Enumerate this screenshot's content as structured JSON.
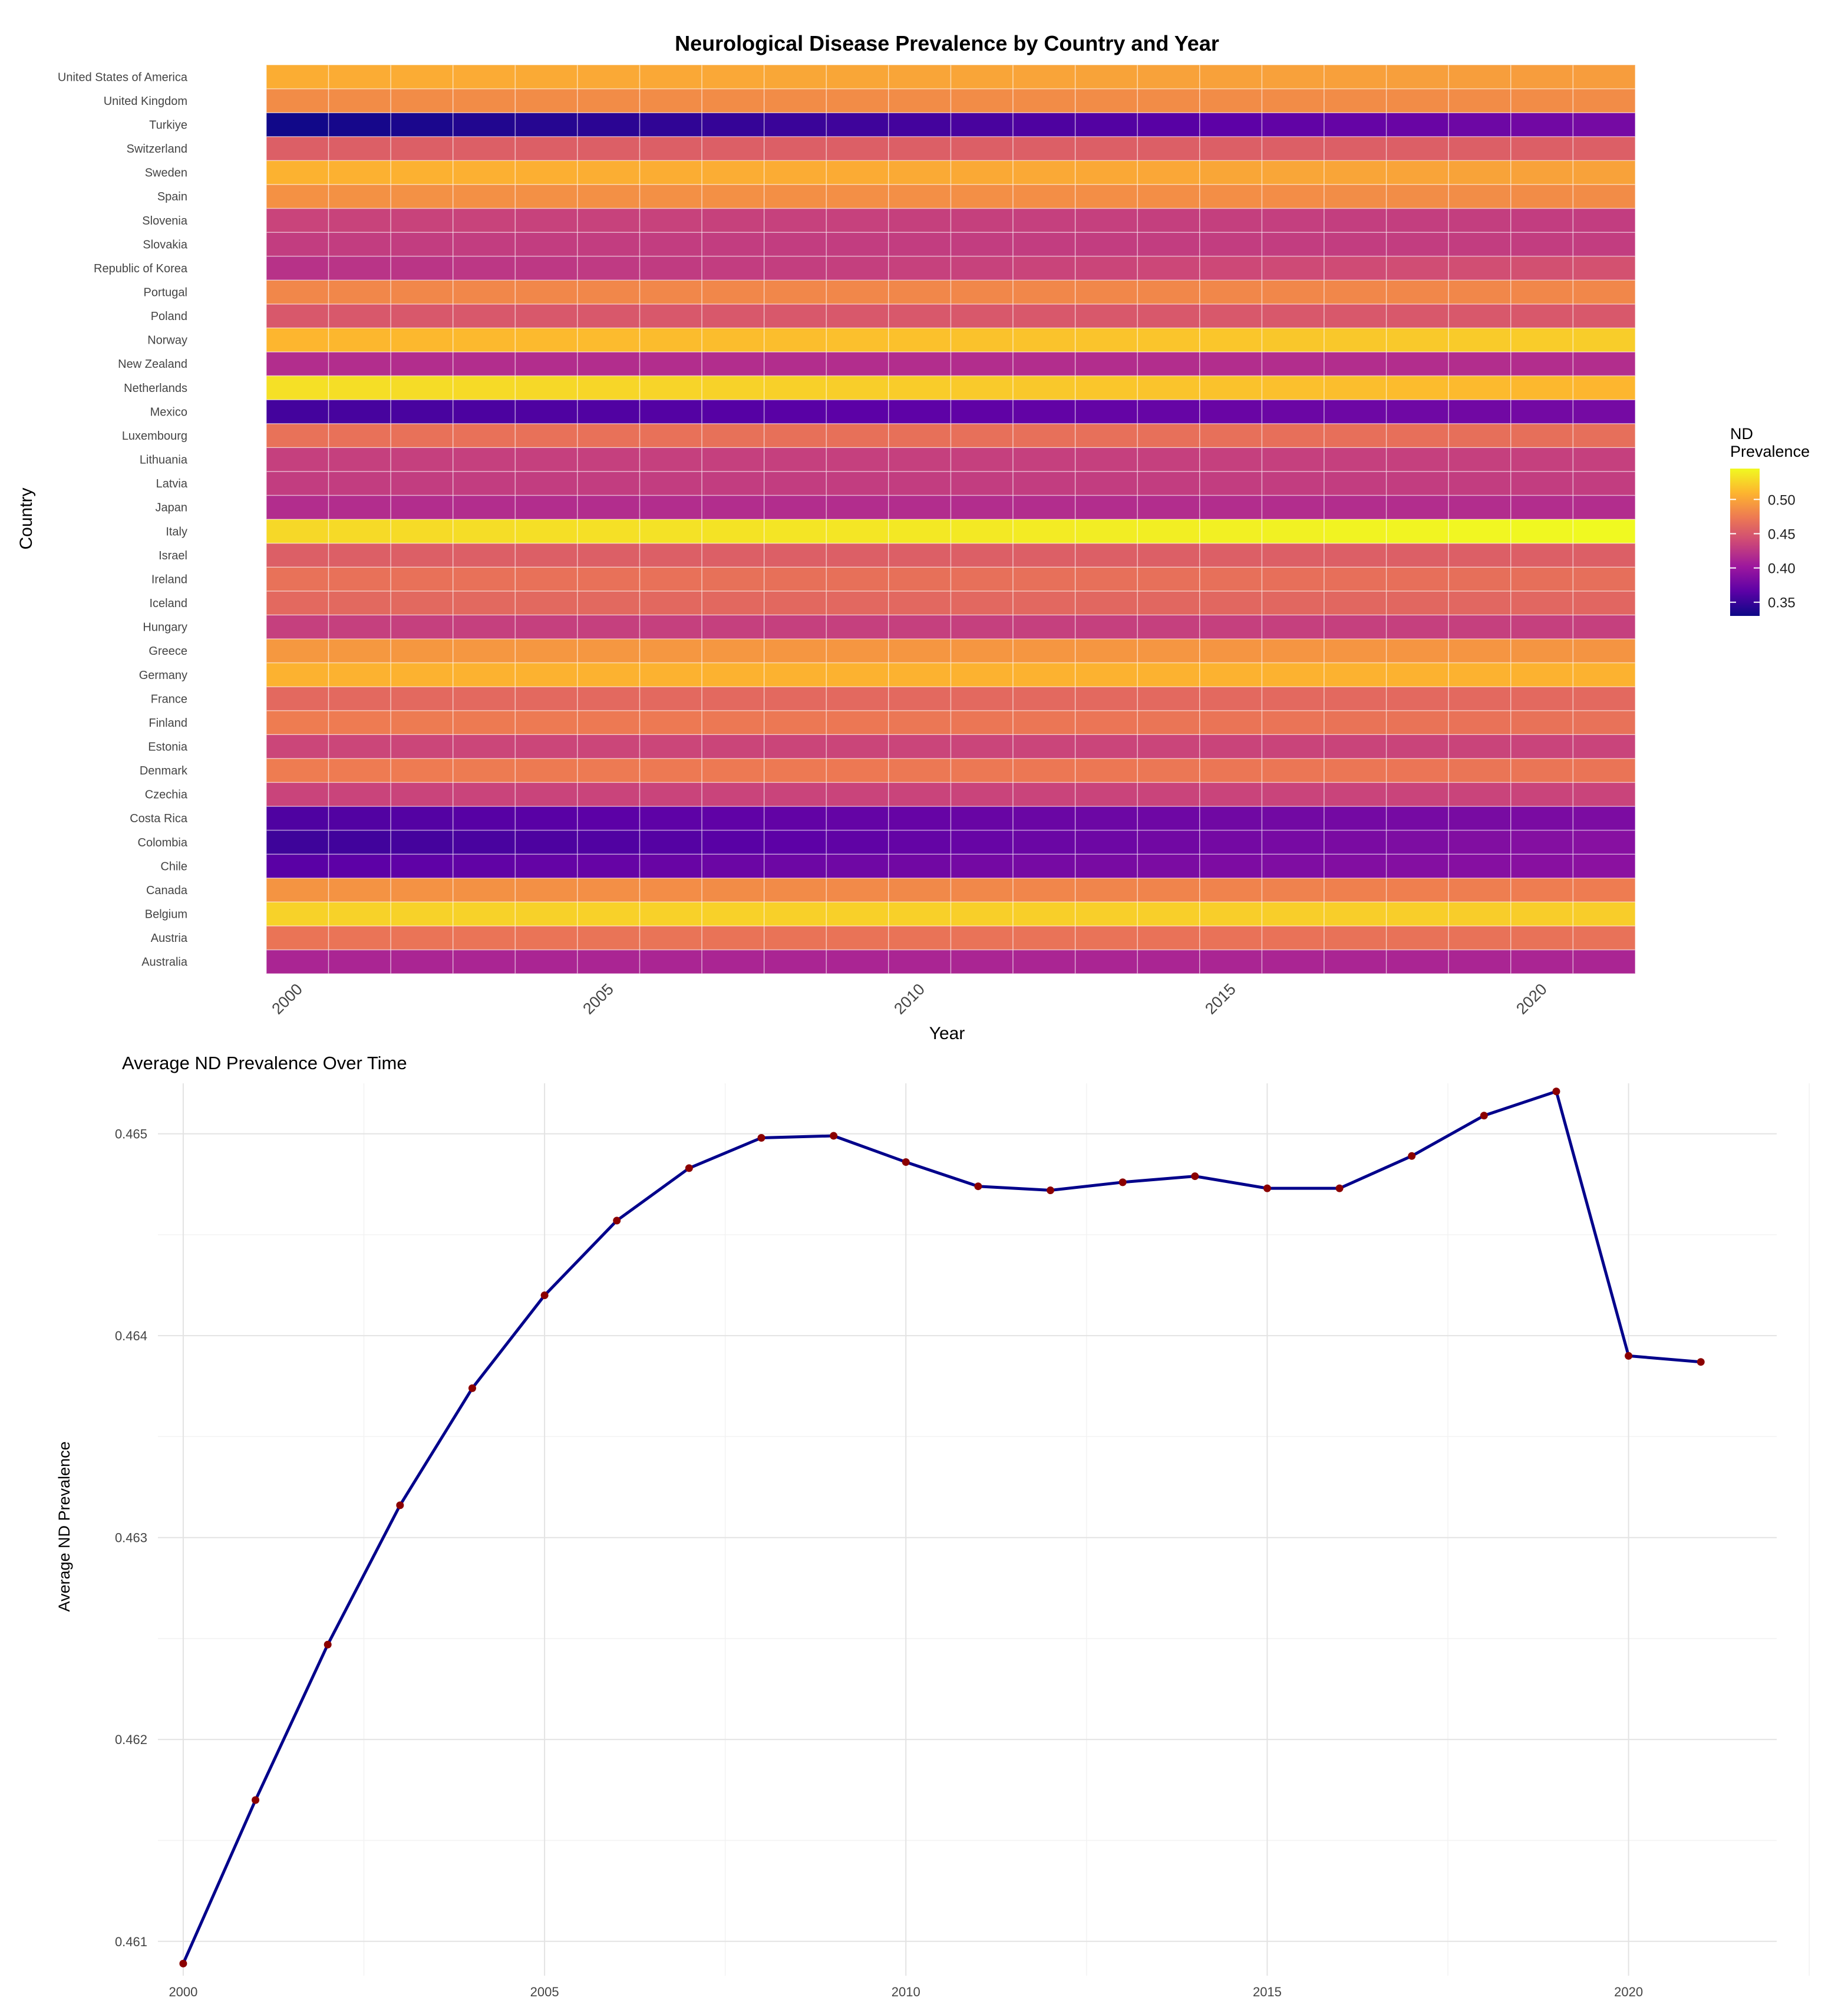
{
  "chart_data": [
    {
      "type": "heatmap",
      "title": "Neurological Disease Prevalence by Country and Year",
      "xlabel": "Year",
      "ylabel": "Country",
      "x": [
        2000,
        2001,
        2002,
        2003,
        2004,
        2005,
        2006,
        2007,
        2008,
        2009,
        2010,
        2011,
        2012,
        2013,
        2014,
        2015,
        2016,
        2017,
        2018,
        2019,
        2020,
        2021
      ],
      "x_ticks": [
        2000,
        2005,
        2010,
        2015,
        2020
      ],
      "x_tick_labels": [
        "2000",
        "2005",
        "2010",
        "2015",
        "2020"
      ],
      "countries": [
        "Australia",
        "Austria",
        "Belgium",
        "Canada",
        "Chile",
        "Colombia",
        "Costa Rica",
        "Czechia",
        "Denmark",
        "Estonia",
        "Finland",
        "France",
        "Germany",
        "Greece",
        "Hungary",
        "Iceland",
        "Ireland",
        "Israel",
        "Italy",
        "Japan",
        "Latvia",
        "Lithuania",
        "Luxembourg",
        "Mexico",
        "Netherlands",
        "New Zealand",
        "Norway",
        "Poland",
        "Portugal",
        "Republic of Korea",
        "Slovakia",
        "Slovenia",
        "Spain",
        "Sweden",
        "Switzerland",
        "Turkiye",
        "United Kingdom",
        "United States of America"
      ],
      "series": [
        {
          "name": "Australia",
          "start": 0.412,
          "end": 0.412
        },
        {
          "name": "Austria",
          "start": 0.47,
          "end": 0.468
        },
        {
          "name": "Belgium",
          "start": 0.525,
          "end": 0.522
        },
        {
          "name": "Canada",
          "start": 0.49,
          "end": 0.475
        },
        {
          "name": "Chile",
          "start": 0.365,
          "end": 0.392
        },
        {
          "name": "Colombia",
          "start": 0.352,
          "end": 0.39
        },
        {
          "name": "Costa Rica",
          "start": 0.36,
          "end": 0.384
        },
        {
          "name": "Czechia",
          "start": 0.435,
          "end": 0.435
        },
        {
          "name": "Denmark",
          "start": 0.475,
          "end": 0.47
        },
        {
          "name": "Estonia",
          "start": 0.437,
          "end": 0.435
        },
        {
          "name": "Finland",
          "start": 0.475,
          "end": 0.468
        },
        {
          "name": "France",
          "start": 0.462,
          "end": 0.462
        },
        {
          "name": "Germany",
          "start": 0.508,
          "end": 0.508
        },
        {
          "name": "Greece",
          "start": 0.492,
          "end": 0.49
        },
        {
          "name": "Hungary",
          "start": 0.432,
          "end": 0.432
        },
        {
          "name": "Iceland",
          "start": 0.462,
          "end": 0.46
        },
        {
          "name": "Ireland",
          "start": 0.468,
          "end": 0.466
        },
        {
          "name": "Israel",
          "start": 0.455,
          "end": 0.455
        },
        {
          "name": "Italy",
          "start": 0.528,
          "end": 0.545
        },
        {
          "name": "Japan",
          "start": 0.418,
          "end": 0.418
        },
        {
          "name": "Latvia",
          "start": 0.43,
          "end": 0.43
        },
        {
          "name": "Lithuania",
          "start": 0.432,
          "end": 0.432
        },
        {
          "name": "Luxembourg",
          "start": 0.468,
          "end": 0.466
        },
        {
          "name": "Mexico",
          "start": 0.355,
          "end": 0.38
        },
        {
          "name": "Netherlands",
          "start": 0.532,
          "end": 0.51
        },
        {
          "name": "New Zealand",
          "start": 0.418,
          "end": 0.418
        },
        {
          "name": "Norway",
          "start": 0.51,
          "end": 0.522
        },
        {
          "name": "Poland",
          "start": 0.45,
          "end": 0.45
        },
        {
          "name": "Portugal",
          "start": 0.482,
          "end": 0.482
        },
        {
          "name": "Republic of Korea",
          "start": 0.422,
          "end": 0.445
        },
        {
          "name": "Slovakia",
          "start": 0.43,
          "end": 0.43
        },
        {
          "name": "Slovenia",
          "start": 0.435,
          "end": 0.43
        },
        {
          "name": "Spain",
          "start": 0.488,
          "end": 0.485
        },
        {
          "name": "Sweden",
          "start": 0.508,
          "end": 0.498
        },
        {
          "name": "Switzerland",
          "start": 0.455,
          "end": 0.455
        },
        {
          "name": "Turkiye",
          "start": 0.332,
          "end": 0.38
        },
        {
          "name": "United Kingdom",
          "start": 0.485,
          "end": 0.485
        },
        {
          "name": "United States of America",
          "start": 0.505,
          "end": 0.495
        }
      ],
      "colorbar": {
        "title_line1": "ND",
        "title_line2": "Prevalence",
        "range": [
          0.33,
          0.545
        ],
        "ticks": [
          0.35,
          0.4,
          0.45,
          0.5
        ],
        "tick_labels": [
          "0.35",
          "0.40",
          "0.45",
          "0.50"
        ],
        "palette": [
          "#0d0887",
          "#5c01a6",
          "#9c179e",
          "#cc4778",
          "#ed7953",
          "#fdb42f",
          "#f0f921"
        ]
      }
    },
    {
      "type": "line",
      "title": "Average ND Prevalence Over Time",
      "xlabel": "",
      "ylabel": "Average ND Prevalence",
      "x": [
        2000,
        2001,
        2002,
        2003,
        2004,
        2005,
        2006,
        2007,
        2008,
        2009,
        2010,
        2011,
        2012,
        2013,
        2014,
        2015,
        2016,
        2017,
        2018,
        2019,
        2020,
        2021
      ],
      "values": [
        0.46089,
        0.4617,
        0.46247,
        0.46316,
        0.46374,
        0.4642,
        0.46457,
        0.46483,
        0.46498,
        0.46499,
        0.46486,
        0.46474,
        0.46472,
        0.46476,
        0.46479,
        0.46473,
        0.46473,
        0.46489,
        0.46509,
        0.46521,
        0.4639,
        0.46387
      ],
      "xlim": [
        1999.65,
        2022.05
      ],
      "ylim": [
        0.46083,
        0.46525
      ],
      "x_ticks": [
        2000,
        2005,
        2010,
        2015,
        2020
      ],
      "x_tick_labels": [
        "2000",
        "2005",
        "2010",
        "2015",
        "2020"
      ],
      "y_ticks": [
        0.461,
        0.462,
        0.463,
        0.464,
        0.465
      ],
      "y_tick_labels": [
        "0.461",
        "0.462",
        "0.463",
        "0.464",
        "0.465"
      ],
      "line_color": "#00008b",
      "point_color": "#8b0000"
    }
  ]
}
